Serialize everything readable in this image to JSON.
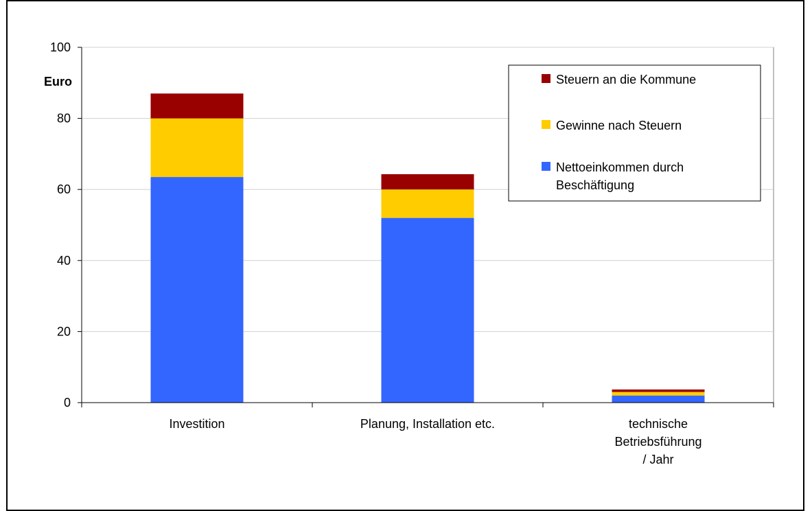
{
  "chart_data": {
    "type": "bar",
    "stacked": true,
    "title": "",
    "xlabel": "",
    "ylabel": "Euro",
    "ylim": [
      0,
      100
    ],
    "yticks": [
      "0",
      "20",
      "40",
      "60",
      "80",
      "100"
    ],
    "grid": true,
    "legend_position": "top-right",
    "categories": [
      [
        "Investition"
      ],
      [
        "Planung, Installation etc."
      ],
      [
        "technische",
        "Betriebsführung",
        "/ Jahr"
      ]
    ],
    "series": [
      {
        "name": "Nettoeinkommen durch Beschäftigung",
        "legend_lines": [
          "Nettoeinkommen durch",
          "Beschäftigung"
        ],
        "color": "#3366ff",
        "values": [
          63.5,
          52,
          2
        ]
      },
      {
        "name": "Gewinne nach Steuern",
        "legend_lines": [
          "Gewinne nach Steuern"
        ],
        "color": "#ffcc00",
        "values": [
          16.5,
          8,
          1
        ]
      },
      {
        "name": "Steuern an die Kommune",
        "legend_lines": [
          "Steuern an die Kommune"
        ],
        "color": "#990000",
        "values": [
          7,
          4.3,
          0.7
        ]
      }
    ]
  }
}
